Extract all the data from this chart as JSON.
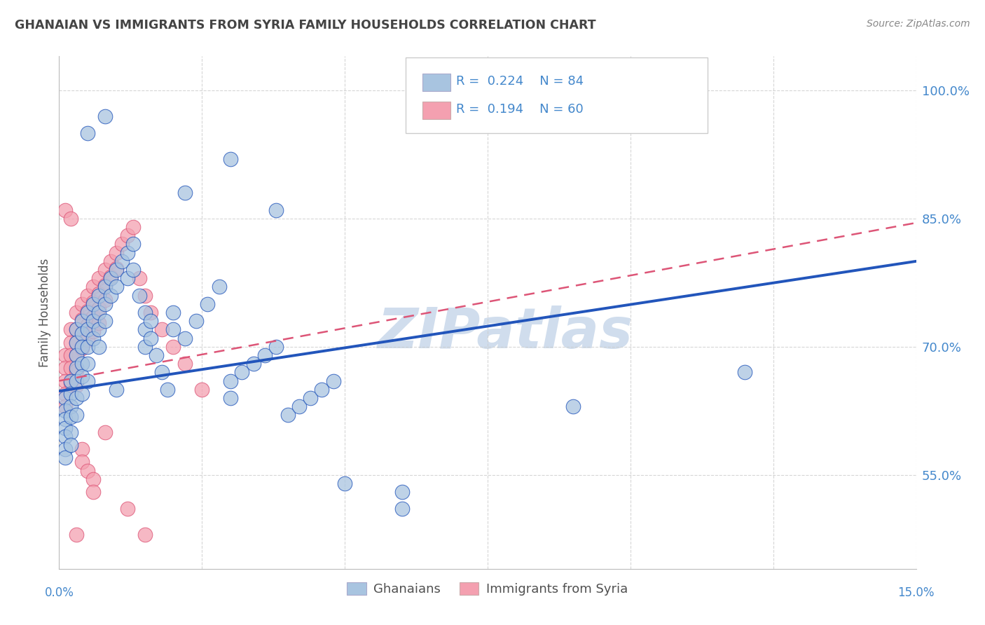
{
  "title": "GHANAIAN VS IMMIGRANTS FROM SYRIA FAMILY HOUSEHOLDS CORRELATION CHART",
  "source": "Source: ZipAtlas.com",
  "ylabel": "Family Households",
  "ytick_values": [
    0.55,
    0.7,
    0.85,
    1.0
  ],
  "xlim": [
    0.0,
    0.15
  ],
  "ylim": [
    0.44,
    1.04
  ],
  "legend_bottom_blue": "Ghanaians",
  "legend_bottom_pink": "Immigrants from Syria",
  "blue_color": "#a8c4e0",
  "pink_color": "#f4a0b0",
  "blue_line_color": "#2255bb",
  "pink_line_color": "#dd5577",
  "watermark_color": "#d0dded",
  "background_color": "#ffffff",
  "grid_color": "#cccccc",
  "title_color": "#444444",
  "source_color": "#888888",
  "axis_label_color": "#4488cc",
  "blue_scatter": [
    [
      0.001,
      0.64
    ],
    [
      0.001,
      0.625
    ],
    [
      0.001,
      0.615
    ],
    [
      0.001,
      0.605
    ],
    [
      0.001,
      0.595
    ],
    [
      0.001,
      0.58
    ],
    [
      0.001,
      0.57
    ],
    [
      0.002,
      0.66
    ],
    [
      0.002,
      0.645
    ],
    [
      0.002,
      0.63
    ],
    [
      0.002,
      0.618
    ],
    [
      0.002,
      0.6
    ],
    [
      0.002,
      0.585
    ],
    [
      0.003,
      0.72
    ],
    [
      0.003,
      0.705
    ],
    [
      0.003,
      0.69
    ],
    [
      0.003,
      0.675
    ],
    [
      0.003,
      0.66
    ],
    [
      0.003,
      0.64
    ],
    [
      0.003,
      0.62
    ],
    [
      0.004,
      0.73
    ],
    [
      0.004,
      0.715
    ],
    [
      0.004,
      0.7
    ],
    [
      0.004,
      0.68
    ],
    [
      0.004,
      0.665
    ],
    [
      0.004,
      0.645
    ],
    [
      0.005,
      0.74
    ],
    [
      0.005,
      0.72
    ],
    [
      0.005,
      0.7
    ],
    [
      0.005,
      0.68
    ],
    [
      0.005,
      0.66
    ],
    [
      0.006,
      0.75
    ],
    [
      0.006,
      0.73
    ],
    [
      0.006,
      0.71
    ],
    [
      0.007,
      0.76
    ],
    [
      0.007,
      0.74
    ],
    [
      0.007,
      0.72
    ],
    [
      0.007,
      0.7
    ],
    [
      0.008,
      0.77
    ],
    [
      0.008,
      0.75
    ],
    [
      0.008,
      0.73
    ],
    [
      0.009,
      0.78
    ],
    [
      0.009,
      0.76
    ],
    [
      0.01,
      0.79
    ],
    [
      0.01,
      0.77
    ],
    [
      0.01,
      0.65
    ],
    [
      0.011,
      0.8
    ],
    [
      0.012,
      0.81
    ],
    [
      0.012,
      0.78
    ],
    [
      0.013,
      0.82
    ],
    [
      0.013,
      0.79
    ],
    [
      0.014,
      0.76
    ],
    [
      0.015,
      0.74
    ],
    [
      0.015,
      0.72
    ],
    [
      0.015,
      0.7
    ],
    [
      0.016,
      0.73
    ],
    [
      0.016,
      0.71
    ],
    [
      0.017,
      0.69
    ],
    [
      0.018,
      0.67
    ],
    [
      0.019,
      0.65
    ],
    [
      0.02,
      0.74
    ],
    [
      0.02,
      0.72
    ],
    [
      0.022,
      0.71
    ],
    [
      0.024,
      0.73
    ],
    [
      0.026,
      0.75
    ],
    [
      0.028,
      0.77
    ],
    [
      0.03,
      0.66
    ],
    [
      0.03,
      0.64
    ],
    [
      0.032,
      0.67
    ],
    [
      0.034,
      0.68
    ],
    [
      0.036,
      0.69
    ],
    [
      0.038,
      0.7
    ],
    [
      0.04,
      0.62
    ],
    [
      0.042,
      0.63
    ],
    [
      0.044,
      0.64
    ],
    [
      0.046,
      0.65
    ],
    [
      0.048,
      0.66
    ],
    [
      0.022,
      0.88
    ],
    [
      0.03,
      0.92
    ],
    [
      0.038,
      0.86
    ],
    [
      0.005,
      0.95
    ],
    [
      0.008,
      0.97
    ],
    [
      0.12,
      0.67
    ],
    [
      0.06,
      0.53
    ],
    [
      0.06,
      0.51
    ],
    [
      0.09,
      0.63
    ],
    [
      0.05,
      0.54
    ]
  ],
  "pink_scatter": [
    [
      0.001,
      0.69
    ],
    [
      0.001,
      0.675
    ],
    [
      0.001,
      0.66
    ],
    [
      0.001,
      0.645
    ],
    [
      0.001,
      0.63
    ],
    [
      0.002,
      0.72
    ],
    [
      0.002,
      0.705
    ],
    [
      0.002,
      0.69
    ],
    [
      0.002,
      0.675
    ],
    [
      0.002,
      0.658
    ],
    [
      0.003,
      0.74
    ],
    [
      0.003,
      0.72
    ],
    [
      0.003,
      0.705
    ],
    [
      0.003,
      0.69
    ],
    [
      0.003,
      0.672
    ],
    [
      0.003,
      0.655
    ],
    [
      0.004,
      0.75
    ],
    [
      0.004,
      0.732
    ],
    [
      0.004,
      0.715
    ],
    [
      0.004,
      0.698
    ],
    [
      0.005,
      0.76
    ],
    [
      0.005,
      0.742
    ],
    [
      0.005,
      0.725
    ],
    [
      0.005,
      0.708
    ],
    [
      0.006,
      0.77
    ],
    [
      0.006,
      0.752
    ],
    [
      0.006,
      0.735
    ],
    [
      0.006,
      0.718
    ],
    [
      0.007,
      0.78
    ],
    [
      0.007,
      0.762
    ],
    [
      0.007,
      0.745
    ],
    [
      0.007,
      0.728
    ],
    [
      0.008,
      0.79
    ],
    [
      0.008,
      0.772
    ],
    [
      0.008,
      0.755
    ],
    [
      0.009,
      0.8
    ],
    [
      0.009,
      0.782
    ],
    [
      0.01,
      0.81
    ],
    [
      0.01,
      0.792
    ],
    [
      0.011,
      0.82
    ],
    [
      0.012,
      0.83
    ],
    [
      0.013,
      0.84
    ],
    [
      0.014,
      0.78
    ],
    [
      0.015,
      0.76
    ],
    [
      0.016,
      0.74
    ],
    [
      0.018,
      0.72
    ],
    [
      0.02,
      0.7
    ],
    [
      0.022,
      0.68
    ],
    [
      0.001,
      0.86
    ],
    [
      0.002,
      0.85
    ],
    [
      0.004,
      0.58
    ],
    [
      0.004,
      0.565
    ],
    [
      0.005,
      0.555
    ],
    [
      0.006,
      0.545
    ],
    [
      0.006,
      0.53
    ],
    [
      0.012,
      0.51
    ],
    [
      0.015,
      0.48
    ],
    [
      0.003,
      0.48
    ],
    [
      0.008,
      0.6
    ],
    [
      0.025,
      0.65
    ]
  ],
  "blue_trendline": [
    [
      0.0,
      0.648
    ],
    [
      0.15,
      0.8
    ]
  ],
  "pink_trendline": [
    [
      0.0,
      0.66
    ],
    [
      0.15,
      0.845
    ]
  ]
}
